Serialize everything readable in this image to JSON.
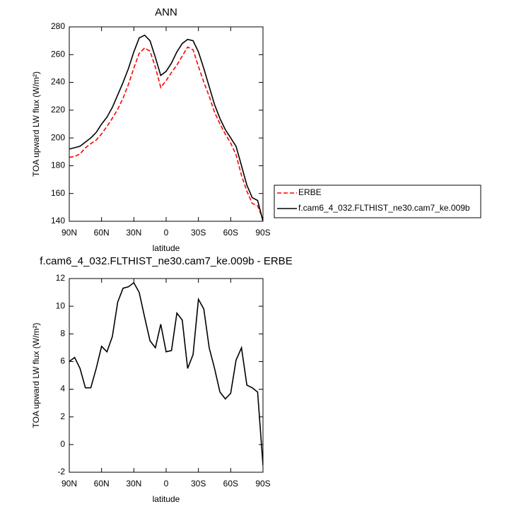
{
  "chart_data": [
    {
      "type": "line",
      "title": "ANN",
      "xlabel": "latitude",
      "ylabel": "TOA upward LW flux (W/m²)",
      "x": [
        90,
        85,
        80,
        75,
        70,
        65,
        60,
        55,
        50,
        45,
        40,
        35,
        30,
        25,
        20,
        15,
        10,
        5,
        0,
        -5,
        -10,
        -15,
        -20,
        -25,
        -30,
        -35,
        -40,
        -45,
        -50,
        -55,
        -60,
        -65,
        -70,
        -75,
        -80,
        -85,
        -90
      ],
      "xlim": [
        90,
        -90
      ],
      "xticks": [
        {
          "value": 90,
          "label": "90N"
        },
        {
          "value": 60,
          "label": "60N"
        },
        {
          "value": 30,
          "label": "30N"
        },
        0,
        {
          "value": -30,
          "label": "30S"
        },
        {
          "value": -60,
          "label": "60S"
        },
        {
          "value": -90,
          "label": "90S"
        }
      ],
      "ylim": [
        140,
        280
      ],
      "yticks": [
        140,
        160,
        180,
        200,
        220,
        240,
        260,
        280
      ],
      "series": [
        {
          "name": "ERBE",
          "color": "#ff0000",
          "dashed": true,
          "values": [
            186,
            186.7,
            188.5,
            192.9,
            195.9,
            198.5,
            202.9,
            208.3,
            214.2,
            220.7,
            228.7,
            238.6,
            250.3,
            261,
            264.8,
            262.5,
            251,
            236.3,
            241.3,
            247.2,
            252.5,
            259,
            265.5,
            263.5,
            251.5,
            240.2,
            230,
            218.5,
            210.2,
            202.7,
            196.3,
            187.9,
            173,
            161.7,
            152.9,
            151.2,
            141.5
          ]
        },
        {
          "name": "f.cam6_4_032.FLTHIST_ne30.cam7_ke.009b",
          "color": "#000000",
          "dashed": false,
          "values": [
            192,
            193,
            194,
            197,
            200,
            204,
            210,
            215,
            222,
            231,
            240,
            250,
            262,
            272,
            274,
            270,
            258,
            245,
            248,
            254,
            262,
            268,
            271,
            270,
            262,
            250,
            237,
            224,
            214,
            206,
            200,
            194,
            180,
            166,
            157,
            155,
            140
          ]
        }
      ]
    },
    {
      "type": "line",
      "title": "f.cam6_4_032.FLTHIST_ne30.cam7_ke.009b - ERBE",
      "xlabel": "latitude",
      "ylabel": "TOA upward LW flux (W/m²)",
      "x": [
        90,
        85,
        80,
        75,
        70,
        65,
        60,
        55,
        50,
        45,
        40,
        35,
        30,
        25,
        20,
        15,
        10,
        5,
        0,
        -5,
        -10,
        -15,
        -20,
        -25,
        -30,
        -35,
        -40,
        -45,
        -50,
        -55,
        -60,
        -65,
        -70,
        -75,
        -80,
        -85,
        -90
      ],
      "xlim": [
        90,
        -90
      ],
      "xticks": [
        {
          "value": 90,
          "label": "90N"
        },
        {
          "value": 60,
          "label": "60N"
        },
        {
          "value": 30,
          "label": "30N"
        },
        0,
        {
          "value": -30,
          "label": "30S"
        },
        {
          "value": -60,
          "label": "60S"
        },
        {
          "value": -90,
          "label": "90S"
        }
      ],
      "ylim": [
        -2,
        12
      ],
      "yticks": [
        -2,
        0,
        2,
        4,
        6,
        8,
        10,
        12
      ],
      "series": [
        {
          "color": "#000000",
          "dashed": false,
          "values": [
            6,
            6.3,
            5.5,
            4.1,
            4.1,
            5.5,
            7.1,
            6.7,
            7.8,
            10.3,
            11.3,
            11.4,
            11.7,
            11,
            9.2,
            7.5,
            7,
            8.7,
            6.7,
            6.8,
            9.5,
            9,
            5.5,
            6.5,
            10.5,
            9.8,
            7,
            5.5,
            3.8,
            3.3,
            3.7,
            6.1,
            7,
            4.3,
            4.1,
            3.8,
            -1.5
          ]
        }
      ]
    }
  ]
}
